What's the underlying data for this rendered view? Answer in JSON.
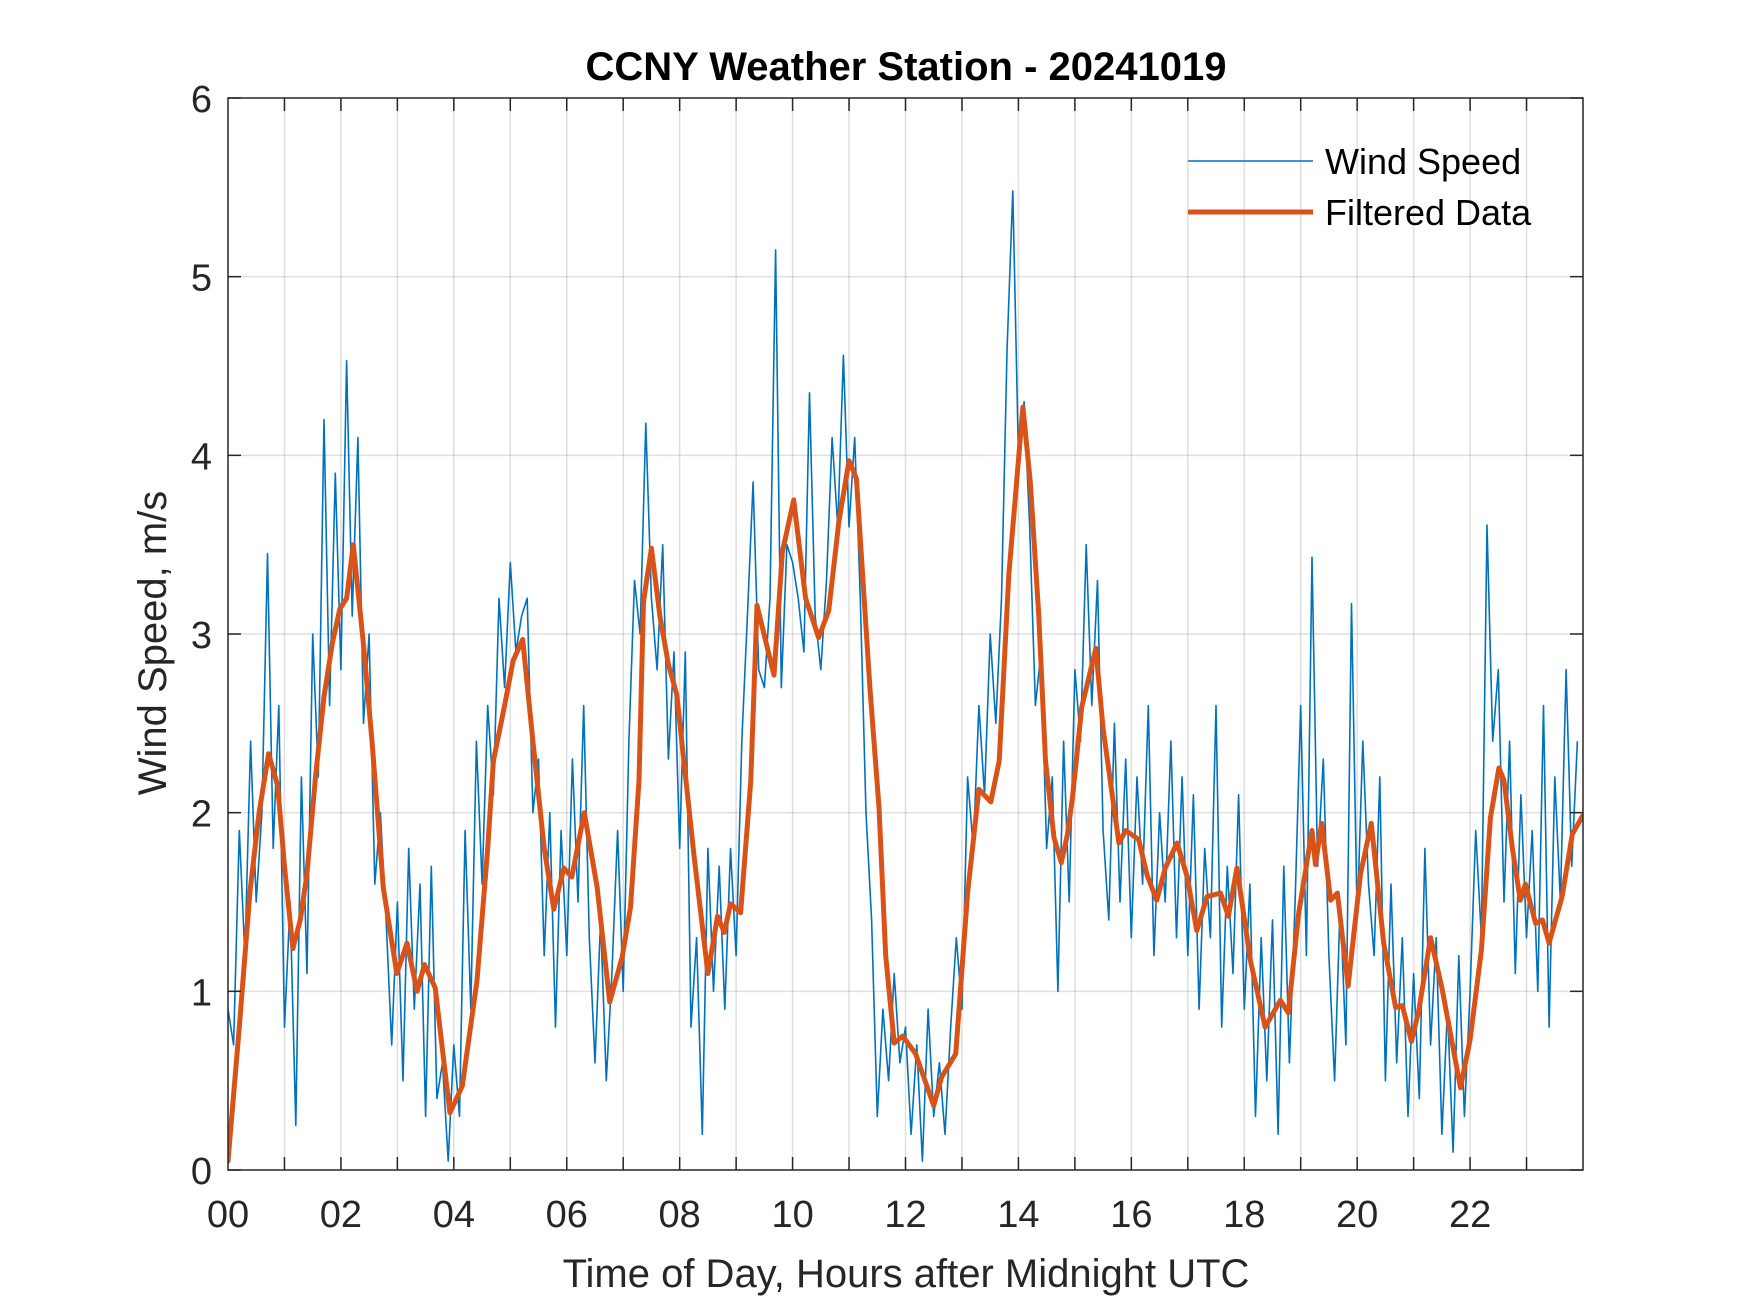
{
  "chart_data": {
    "type": "line",
    "title": "CCNY Weather Station - 20241019",
    "xlabel": "Time of Day, Hours after Midnight UTC",
    "ylabel": "Wind Speed, m/s",
    "xlim": [
      0,
      24
    ],
    "ylim": [
      0,
      6
    ],
    "x_ticks": [
      0,
      2,
      4,
      6,
      8,
      10,
      12,
      14,
      16,
      18,
      20,
      22
    ],
    "x_tick_labels": [
      "00",
      "02",
      "04",
      "06",
      "08",
      "10",
      "12",
      "14",
      "16",
      "18",
      "20",
      "22"
    ],
    "x_minor_grid_step": 1,
    "y_ticks": [
      0,
      1,
      2,
      3,
      4,
      5,
      6
    ],
    "y_tick_labels": [
      "0",
      "1",
      "2",
      "3",
      "4",
      "5",
      "6"
    ],
    "grid": true,
    "legend": {
      "position": "top-right",
      "box": false
    },
    "series": [
      {
        "name": "Wind Speed",
        "color": "#0072BD",
        "style": "thin",
        "x_start": 0,
        "x_step": 0.1,
        "values": [
          0.9,
          0.7,
          1.9,
          1.2,
          2.4,
          1.5,
          2.0,
          3.45,
          1.8,
          2.6,
          0.8,
          1.5,
          0.25,
          2.2,
          1.1,
          3.0,
          2.2,
          4.2,
          2.6,
          3.9,
          2.8,
          4.53,
          3.1,
          4.1,
          2.5,
          3.0,
          1.6,
          2.0,
          1.4,
          0.7,
          1.5,
          0.5,
          1.8,
          0.9,
          1.6,
          0.3,
          1.7,
          0.4,
          0.6,
          0.05,
          0.7,
          0.3,
          1.9,
          0.9,
          2.4,
          1.6,
          2.6,
          2.1,
          3.2,
          2.7,
          3.4,
          2.9,
          3.1,
          3.2,
          2.0,
          2.3,
          1.2,
          2.0,
          0.8,
          1.9,
          1.2,
          2.3,
          1.5,
          2.6,
          1.3,
          0.6,
          1.4,
          0.5,
          1.1,
          1.9,
          1.0,
          2.4,
          3.3,
          3.0,
          4.18,
          3.2,
          2.8,
          3.5,
          2.3,
          2.9,
          1.8,
          2.9,
          0.8,
          1.3,
          0.2,
          1.8,
          1.0,
          1.7,
          0.9,
          1.8,
          1.2,
          2.4,
          3.1,
          3.85,
          2.8,
          2.7,
          3.2,
          5.15,
          2.7,
          3.5,
          3.4,
          3.2,
          2.9,
          4.35,
          3.1,
          2.8,
          3.3,
          4.1,
          3.6,
          4.56,
          3.6,
          4.1,
          3.2,
          2.0,
          1.4,
          0.3,
          0.9,
          0.5,
          1.1,
          0.6,
          0.8,
          0.2,
          0.7,
          0.05,
          0.9,
          0.3,
          0.6,
          0.2,
          0.8,
          1.3,
          0.9,
          2.2,
          1.8,
          2.6,
          2.1,
          3.0,
          2.5,
          3.2,
          4.6,
          5.48,
          4.0,
          4.3,
          3.6,
          2.6,
          2.9,
          1.8,
          2.2,
          1.0,
          2.4,
          1.5,
          2.8,
          2.4,
          3.5,
          2.6,
          3.3,
          1.9,
          1.4,
          2.5,
          1.5,
          2.3,
          1.3,
          2.2,
          1.6,
          2.6,
          1.2,
          2.0,
          1.5,
          2.4,
          1.3,
          2.2,
          1.2,
          2.1,
          0.9,
          1.8,
          1.3,
          2.6,
          0.8,
          1.7,
          1.1,
          2.1,
          0.9,
          1.6,
          0.3,
          1.3,
          0.5,
          1.4,
          0.2,
          1.7,
          0.6,
          1.5,
          2.6,
          1.2,
          3.43,
          1.7,
          2.3,
          1.2,
          0.5,
          1.5,
          0.7,
          3.17,
          1.4,
          2.4,
          1.6,
          1.2,
          2.2,
          0.5,
          1.6,
          0.6,
          1.3,
          0.3,
          1.1,
          0.4,
          1.8,
          0.7,
          1.3,
          0.2,
          0.9,
          0.1,
          1.2,
          0.3,
          1.0,
          1.9,
          1.3,
          3.61,
          2.4,
          2.8,
          1.5,
          2.4,
          1.1,
          2.1,
          1.3,
          1.9,
          1.0,
          2.6,
          0.8,
          2.2,
          1.5,
          2.8,
          1.7,
          2.4
        ]
      },
      {
        "name": "Filtered Data",
        "color": "#D95319",
        "style": "thick",
        "points": [
          [
            0,
            0.05
          ],
          [
            0.2,
            0.8
          ],
          [
            0.39,
            1.56
          ],
          [
            0.55,
            2.0
          ],
          [
            0.72,
            2.33
          ],
          [
            0.88,
            2.15
          ],
          [
            1.0,
            1.7
          ],
          [
            1.15,
            1.24
          ],
          [
            1.28,
            1.4
          ],
          [
            1.4,
            1.66
          ],
          [
            1.55,
            2.2
          ],
          [
            1.7,
            2.65
          ],
          [
            1.85,
            2.95
          ],
          [
            1.98,
            3.14
          ],
          [
            2.1,
            3.2
          ],
          [
            2.22,
            3.5
          ],
          [
            2.4,
            2.94
          ],
          [
            2.55,
            2.4
          ],
          [
            2.75,
            1.58
          ],
          [
            2.99,
            1.1
          ],
          [
            3.17,
            1.27
          ],
          [
            3.35,
            1.0
          ],
          [
            3.48,
            1.15
          ],
          [
            3.67,
            1.02
          ],
          [
            3.93,
            0.32
          ],
          [
            4.15,
            0.47
          ],
          [
            4.41,
            1.06
          ],
          [
            4.6,
            1.8
          ],
          [
            4.7,
            2.29
          ],
          [
            4.9,
            2.6
          ],
          [
            5.05,
            2.85
          ],
          [
            5.22,
            2.97
          ],
          [
            5.4,
            2.4
          ],
          [
            5.6,
            1.8
          ],
          [
            5.77,
            1.46
          ],
          [
            5.95,
            1.69
          ],
          [
            6.09,
            1.64
          ],
          [
            6.31,
            2.0
          ],
          [
            6.54,
            1.58
          ],
          [
            6.76,
            0.94
          ],
          [
            6.98,
            1.19
          ],
          [
            7.13,
            1.47
          ],
          [
            7.28,
            2.18
          ],
          [
            7.36,
            3.18
          ],
          [
            7.5,
            3.48
          ],
          [
            7.65,
            3.1
          ],
          [
            7.8,
            2.83
          ],
          [
            7.95,
            2.66
          ],
          [
            8.25,
            1.77
          ],
          [
            8.5,
            1.1
          ],
          [
            8.67,
            1.42
          ],
          [
            8.79,
            1.33
          ],
          [
            8.9,
            1.49
          ],
          [
            9.08,
            1.44
          ],
          [
            9.26,
            2.18
          ],
          [
            9.37,
            3.16
          ],
          [
            9.67,
            2.77
          ],
          [
            9.82,
            3.46
          ],
          [
            10.02,
            3.75
          ],
          [
            10.23,
            3.2
          ],
          [
            10.46,
            2.98
          ],
          [
            10.64,
            3.13
          ],
          [
            10.82,
            3.63
          ],
          [
            11.0,
            3.97
          ],
          [
            11.13,
            3.87
          ],
          [
            11.37,
            2.7
          ],
          [
            11.53,
            2.03
          ],
          [
            11.65,
            1.2
          ],
          [
            11.8,
            0.71
          ],
          [
            11.95,
            0.75
          ],
          [
            12.18,
            0.65
          ],
          [
            12.5,
            0.36
          ],
          [
            12.64,
            0.52
          ],
          [
            12.89,
            0.65
          ],
          [
            13.1,
            1.55
          ],
          [
            13.3,
            2.13
          ],
          [
            13.51,
            2.06
          ],
          [
            13.66,
            2.29
          ],
          [
            13.83,
            3.33
          ],
          [
            14.08,
            4.27
          ],
          [
            14.21,
            3.85
          ],
          [
            14.36,
            3.11
          ],
          [
            14.48,
            2.29
          ],
          [
            14.63,
            1.86
          ],
          [
            14.76,
            1.72
          ],
          [
            14.87,
            1.88
          ],
          [
            14.96,
            2.09
          ],
          [
            15.12,
            2.59
          ],
          [
            15.37,
            2.92
          ],
          [
            15.5,
            2.47
          ],
          [
            15.78,
            1.83
          ],
          [
            15.9,
            1.9
          ],
          [
            16.13,
            1.85
          ],
          [
            16.28,
            1.65
          ],
          [
            16.45,
            1.51
          ],
          [
            16.6,
            1.69
          ],
          [
            16.81,
            1.83
          ],
          [
            16.99,
            1.64
          ],
          [
            17.16,
            1.34
          ],
          [
            17.34,
            1.53
          ],
          [
            17.58,
            1.55
          ],
          [
            17.72,
            1.42
          ],
          [
            17.87,
            1.69
          ],
          [
            18.11,
            1.17
          ],
          [
            18.37,
            0.8
          ],
          [
            18.64,
            0.95
          ],
          [
            18.78,
            0.88
          ],
          [
            18.96,
            1.43
          ],
          [
            19.2,
            1.9
          ],
          [
            19.26,
            1.71
          ],
          [
            19.37,
            1.94
          ],
          [
            19.53,
            1.51
          ],
          [
            19.65,
            1.55
          ],
          [
            19.84,
            1.03
          ],
          [
            19.94,
            1.32
          ],
          [
            20.06,
            1.66
          ],
          [
            20.25,
            1.94
          ],
          [
            20.47,
            1.27
          ],
          [
            20.68,
            0.91
          ],
          [
            20.8,
            0.92
          ],
          [
            20.96,
            0.72
          ],
          [
            21.09,
            0.89
          ],
          [
            21.3,
            1.3
          ],
          [
            21.5,
            1.02
          ],
          [
            21.83,
            0.46
          ],
          [
            22.0,
            0.73
          ],
          [
            22.2,
            1.23
          ],
          [
            22.36,
            1.97
          ],
          [
            22.51,
            2.25
          ],
          [
            22.6,
            2.18
          ],
          [
            22.75,
            1.8
          ],
          [
            22.89,
            1.51
          ],
          [
            22.98,
            1.6
          ],
          [
            23.16,
            1.38
          ],
          [
            23.28,
            1.4
          ],
          [
            23.4,
            1.27
          ],
          [
            23.63,
            1.53
          ],
          [
            23.81,
            1.88
          ],
          [
            23.99,
            1.98
          ]
        ]
      }
    ]
  }
}
